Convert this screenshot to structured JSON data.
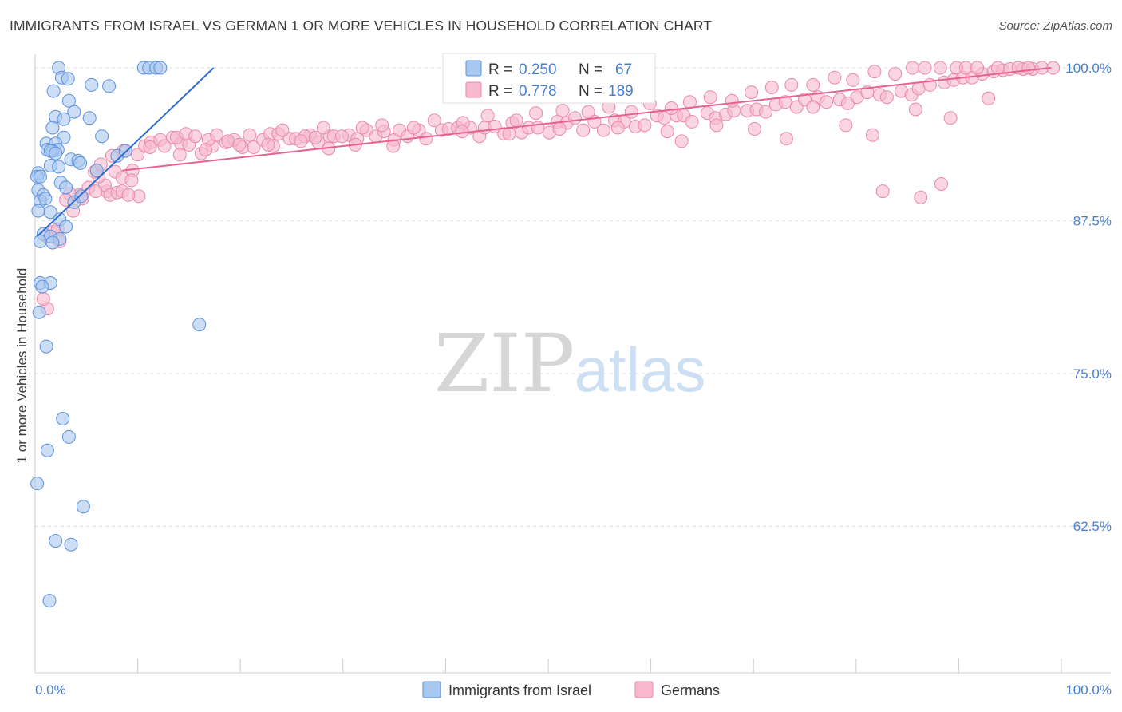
{
  "header": {
    "title": "IMMIGRANTS FROM ISRAEL VS GERMAN 1 OR MORE VEHICLES IN HOUSEHOLD CORRELATION CHART",
    "source": "Source: ZipAtlas.com"
  },
  "watermark": {
    "zip": "ZIP",
    "atlas": "atlas"
  },
  "colors": {
    "israel_fill": "#a9c8f0",
    "israel_stroke": "#5c8fdc",
    "israel_line": "#2e6bd1",
    "german_fill": "#f7b9cd",
    "german_stroke": "#e889a9",
    "german_line": "#e8608e",
    "tick_text": "#4a7fd0",
    "grid": "#dddddd"
  },
  "chart_data": {
    "type": "scatter",
    "title": "IMMIGRANTS FROM ISRAEL VS GERMAN 1 OR MORE VEHICLES IN HOUSEHOLD CORRELATION CHART",
    "xlabel": "",
    "ylabel": "1 or more Vehicles in Household",
    "xlim": [
      0,
      100
    ],
    "ylim": [
      50.5,
      101.5
    ],
    "x_tick_labels": [
      "0.0%",
      "100.0%"
    ],
    "y_ticks": [
      {
        "value": 62.5,
        "label": "62.5%"
      },
      {
        "value": 75.0,
        "label": "75.0%"
      },
      {
        "value": 87.5,
        "label": "87.5%"
      },
      {
        "value": 100.0,
        "label": "100.0%"
      }
    ],
    "legend_stats": [
      {
        "series": "Immigrants from Israel",
        "r_label": "R =",
        "r": "0.250",
        "n_label": "N =",
        "n": "67"
      },
      {
        "series": "Germans",
        "r_label": "R =",
        "r": "0.778",
        "n_label": "N =",
        "n": "189"
      }
    ],
    "series": [
      {
        "name": "Immigrants from Israel",
        "trend": {
          "x0": 0.2,
          "y0": 86.2,
          "x1": 17.4,
          "y1": 100.0
        },
        "points": [
          [
            2.3,
            100.0
          ],
          [
            10.6,
            100.0
          ],
          [
            11.1,
            100.0
          ],
          [
            11.8,
            100.0
          ],
          [
            12.2,
            100.0
          ],
          [
            2.6,
            99.2
          ],
          [
            3.2,
            99.1
          ],
          [
            5.5,
            98.6
          ],
          [
            7.2,
            98.5
          ],
          [
            1.8,
            98.1
          ],
          [
            3.3,
            97.3
          ],
          [
            3.8,
            96.4
          ],
          [
            2.0,
            96.0
          ],
          [
            5.3,
            95.9
          ],
          [
            2.8,
            95.8
          ],
          [
            1.7,
            95.1
          ],
          [
            6.5,
            94.4
          ],
          [
            2.8,
            94.3
          ],
          [
            1.1,
            93.8
          ],
          [
            2.0,
            93.8
          ],
          [
            1.2,
            93.3
          ],
          [
            2.2,
            93.3
          ],
          [
            1.7,
            93.2
          ],
          [
            1.5,
            93.2
          ],
          [
            2.0,
            93.0
          ],
          [
            3.5,
            92.5
          ],
          [
            4.2,
            92.4
          ],
          [
            4.4,
            92.2
          ],
          [
            1.5,
            92.0
          ],
          [
            2.3,
            91.9
          ],
          [
            0.3,
            91.4
          ],
          [
            0.2,
            91.1
          ],
          [
            0.5,
            91.1
          ],
          [
            2.5,
            90.6
          ],
          [
            3.0,
            90.2
          ],
          [
            0.3,
            90.0
          ],
          [
            0.8,
            89.6
          ],
          [
            0.5,
            89.1
          ],
          [
            3.8,
            89.0
          ],
          [
            0.3,
            88.3
          ],
          [
            1.5,
            88.2
          ],
          [
            2.4,
            87.6
          ],
          [
            0.8,
            86.4
          ],
          [
            1.5,
            86.2
          ],
          [
            2.4,
            86.0
          ],
          [
            0.5,
            85.8
          ],
          [
            1.7,
            85.7
          ],
          [
            0.5,
            82.4
          ],
          [
            1.5,
            82.4
          ],
          [
            0.7,
            82.1
          ],
          [
            0.4,
            80.0
          ],
          [
            1.1,
            77.2
          ],
          [
            16.0,
            79.0
          ],
          [
            2.7,
            71.3
          ],
          [
            3.3,
            69.8
          ],
          [
            1.2,
            68.7
          ],
          [
            0.2,
            66.0
          ],
          [
            4.7,
            64.1
          ],
          [
            2.0,
            61.3
          ],
          [
            3.5,
            61.0
          ],
          [
            1.4,
            56.4
          ],
          [
            8.0,
            92.8
          ],
          [
            8.8,
            93.2
          ],
          [
            6.0,
            91.6
          ],
          [
            4.5,
            89.5
          ],
          [
            1.0,
            89.3
          ],
          [
            3.0,
            87.0
          ]
        ]
      },
      {
        "name": "Germans",
        "trend": {
          "x0": 8.5,
          "y0": 91.6,
          "x1": 99.0,
          "y1": 100.0
        },
        "points": [
          [
            1.2,
            80.3
          ],
          [
            0.8,
            81.1
          ],
          [
            1.2,
            86.2
          ],
          [
            1.8,
            86.6
          ],
          [
            2.4,
            85.8
          ],
          [
            2.2,
            86.8
          ],
          [
            4.3,
            89.6
          ],
          [
            5.2,
            90.2
          ],
          [
            7.0,
            89.9
          ],
          [
            4.6,
            89.3
          ],
          [
            3.4,
            89.7
          ],
          [
            3.0,
            89.2
          ],
          [
            6.8,
            90.4
          ],
          [
            6.2,
            91.1
          ],
          [
            7.8,
            91.5
          ],
          [
            8.5,
            91.0
          ],
          [
            9.5,
            91.6
          ],
          [
            5.8,
            91.5
          ],
          [
            6.4,
            92.1
          ],
          [
            7.5,
            92.8
          ],
          [
            8.6,
            93.2
          ],
          [
            10.0,
            92.9
          ],
          [
            10.7,
            93.6
          ],
          [
            11.3,
            93.9
          ],
          [
            12.2,
            94.1
          ],
          [
            13.4,
            94.3
          ],
          [
            14.2,
            93.8
          ],
          [
            15.0,
            93.7
          ],
          [
            16.2,
            93.0
          ],
          [
            17.3,
            93.6
          ],
          [
            18.6,
            93.9
          ],
          [
            19.4,
            94.1
          ],
          [
            20.2,
            93.5
          ],
          [
            21.3,
            93.5
          ],
          [
            22.2,
            94.1
          ],
          [
            22.9,
            94.6
          ],
          [
            23.7,
            94.6
          ],
          [
            24.8,
            94.2
          ],
          [
            25.4,
            94.2
          ],
          [
            26.8,
            94.5
          ],
          [
            27.6,
            93.9
          ],
          [
            28.7,
            94.4
          ],
          [
            29.1,
            94.4
          ],
          [
            30.6,
            94.5
          ],
          [
            31.4,
            94.2
          ],
          [
            32.3,
            94.9
          ],
          [
            33.2,
            94.4
          ],
          [
            34.0,
            94.8
          ],
          [
            35.0,
            94.1
          ],
          [
            35.5,
            94.9
          ],
          [
            36.3,
            94.4
          ],
          [
            37.4,
            94.9
          ],
          [
            38.1,
            94.2
          ],
          [
            39.6,
            94.9
          ],
          [
            40.3,
            95.0
          ],
          [
            41.2,
            95.1
          ],
          [
            42.4,
            95.1
          ],
          [
            43.3,
            94.4
          ],
          [
            43.8,
            95.1
          ],
          [
            44.8,
            95.2
          ],
          [
            45.7,
            94.6
          ],
          [
            46.5,
            95.5
          ],
          [
            47.4,
            94.7
          ],
          [
            48.1,
            95.1
          ],
          [
            49.0,
            95.1
          ],
          [
            50.1,
            94.7
          ],
          [
            50.9,
            95.6
          ],
          [
            51.8,
            95.5
          ],
          [
            52.6,
            95.9
          ],
          [
            53.4,
            94.9
          ],
          [
            54.5,
            95.6
          ],
          [
            55.4,
            94.9
          ],
          [
            56.5,
            95.7
          ],
          [
            57.4,
            95.6
          ],
          [
            58.5,
            95.2
          ],
          [
            59.4,
            95.3
          ],
          [
            60.6,
            96.1
          ],
          [
            61.3,
            95.9
          ],
          [
            62.5,
            96.1
          ],
          [
            63.2,
            96.1
          ],
          [
            64.0,
            95.6
          ],
          [
            65.5,
            96.3
          ],
          [
            66.3,
            95.9
          ],
          [
            67.3,
            96.2
          ],
          [
            68.1,
            96.5
          ],
          [
            69.4,
            96.5
          ],
          [
            70.3,
            96.6
          ],
          [
            71.2,
            96.4
          ],
          [
            72.2,
            97.0
          ],
          [
            73.1,
            97.2
          ],
          [
            74.2,
            96.8
          ],
          [
            75.0,
            97.4
          ],
          [
            76.3,
            97.6
          ],
          [
            77.1,
            97.2
          ],
          [
            78.4,
            97.4
          ],
          [
            79.2,
            97.1
          ],
          [
            80.1,
            97.6
          ],
          [
            81.1,
            98.0
          ],
          [
            82.3,
            97.8
          ],
          [
            83.0,
            97.6
          ],
          [
            84.4,
            98.1
          ],
          [
            85.4,
            97.8
          ],
          [
            86.1,
            98.3
          ],
          [
            87.2,
            98.6
          ],
          [
            88.6,
            98.8
          ],
          [
            89.5,
            99.0
          ],
          [
            90.4,
            99.2
          ],
          [
            91.3,
            99.2
          ],
          [
            92.3,
            99.5
          ],
          [
            93.4,
            99.7
          ],
          [
            94.3,
            99.8
          ],
          [
            95.0,
            99.9
          ],
          [
            96.3,
            99.9
          ],
          [
            97.2,
            99.9
          ],
          [
            98.1,
            100.0
          ],
          [
            99.2,
            100.0
          ],
          [
            11.2,
            93.5
          ],
          [
            12.6,
            93.6
          ],
          [
            13.8,
            94.3
          ],
          [
            14.7,
            94.6
          ],
          [
            15.6,
            94.4
          ],
          [
            16.9,
            94.1
          ],
          [
            17.7,
            94.5
          ],
          [
            18.8,
            94.0
          ],
          [
            20.9,
            94.5
          ],
          [
            23.2,
            93.6
          ],
          [
            24.1,
            94.9
          ],
          [
            26.3,
            94.4
          ],
          [
            27.3,
            94.3
          ],
          [
            28.1,
            95.1
          ],
          [
            29.9,
            94.4
          ],
          [
            31.9,
            95.1
          ],
          [
            33.8,
            95.3
          ],
          [
            36.9,
            95.1
          ],
          [
            38.9,
            95.7
          ],
          [
            41.7,
            95.5
          ],
          [
            44.1,
            96.1
          ],
          [
            46.9,
            95.7
          ],
          [
            48.8,
            96.3
          ],
          [
            51.4,
            96.5
          ],
          [
            53.9,
            96.4
          ],
          [
            55.9,
            96.8
          ],
          [
            58.1,
            96.4
          ],
          [
            59.9,
            97.1
          ],
          [
            62.0,
            96.7
          ],
          [
            63.8,
            97.2
          ],
          [
            65.8,
            97.6
          ],
          [
            67.9,
            97.3
          ],
          [
            69.8,
            98.0
          ],
          [
            71.8,
            98.4
          ],
          [
            73.7,
            98.6
          ],
          [
            75.8,
            98.6
          ],
          [
            77.9,
            99.2
          ],
          [
            79.7,
            99.0
          ],
          [
            81.8,
            99.7
          ],
          [
            83.8,
            99.5
          ],
          [
            85.5,
            100.0
          ],
          [
            86.7,
            100.0
          ],
          [
            88.2,
            100.0
          ],
          [
            89.8,
            100.0
          ],
          [
            90.7,
            100.0
          ],
          [
            91.8,
            100.0
          ],
          [
            93.8,
            100.0
          ],
          [
            95.8,
            100.0
          ],
          [
            96.8,
            100.0
          ],
          [
            14.1,
            92.9
          ],
          [
            16.6,
            93.3
          ],
          [
            19.9,
            93.7
          ],
          [
            22.7,
            93.7
          ],
          [
            25.9,
            94.0
          ],
          [
            28.6,
            93.4
          ],
          [
            31.2,
            93.7
          ],
          [
            34.9,
            93.6
          ],
          [
            41.6,
            94.8
          ],
          [
            46.2,
            94.6
          ],
          [
            51.1,
            95.0
          ],
          [
            56.8,
            95.1
          ],
          [
            61.6,
            94.8
          ],
          [
            63.0,
            94.0
          ],
          [
            66.4,
            95.3
          ],
          [
            70.1,
            95.0
          ],
          [
            73.2,
            94.2
          ],
          [
            75.8,
            96.8
          ],
          [
            79.0,
            95.3
          ],
          [
            81.6,
            94.5
          ],
          [
            85.8,
            96.6
          ],
          [
            89.2,
            95.9
          ],
          [
            92.9,
            97.5
          ],
          [
            9.4,
            90.8
          ],
          [
            10.1,
            89.5
          ],
          [
            3.7,
            88.3
          ],
          [
            5.9,
            89.9
          ],
          [
            7.3,
            89.6
          ],
          [
            8.0,
            89.8
          ],
          [
            8.5,
            89.9
          ],
          [
            82.6,
            89.9
          ],
          [
            86.3,
            89.4
          ],
          [
            88.3,
            90.5
          ],
          [
            9.1,
            89.6
          ]
        ]
      }
    ]
  },
  "bottom_legend": [
    {
      "label": "Immigrants from Israel"
    },
    {
      "label": "Germans"
    }
  ]
}
